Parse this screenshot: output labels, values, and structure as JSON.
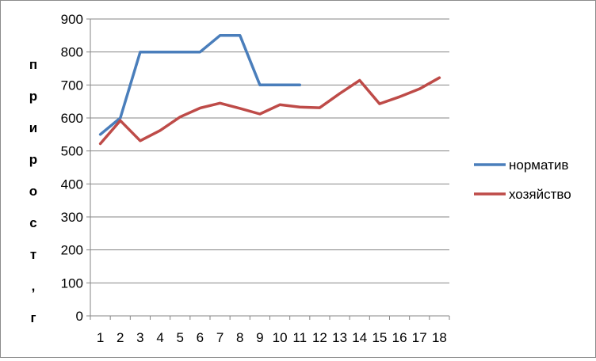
{
  "chart_data": {
    "type": "line",
    "title": "",
    "xlabel": "",
    "ylabel": "прирост, г",
    "ylim": [
      0,
      900
    ],
    "yticks": [
      0,
      100,
      200,
      300,
      400,
      500,
      600,
      700,
      800,
      900
    ],
    "categories": [
      "1",
      "2",
      "3",
      "4",
      "5",
      "6",
      "7",
      "8",
      "9",
      "10",
      "11",
      "12",
      "13",
      "14",
      "15",
      "16",
      "17",
      "18"
    ],
    "grid": true,
    "legend": "right",
    "series": [
      {
        "name": "норматив",
        "color": "#4a7ebb",
        "values": [
          550,
          600,
          800,
          800,
          800,
          800,
          850,
          850,
          700,
          700,
          700,
          null,
          null,
          null,
          null,
          null,
          null,
          null
        ]
      },
      {
        "name": "хозяйство",
        "color": "#be4b48",
        "values": [
          522,
          592,
          531,
          562,
          603,
          630,
          645,
          629,
          612,
          640,
          633,
          631,
          674,
          714,
          643,
          664,
          688,
          722
        ]
      }
    ]
  }
}
